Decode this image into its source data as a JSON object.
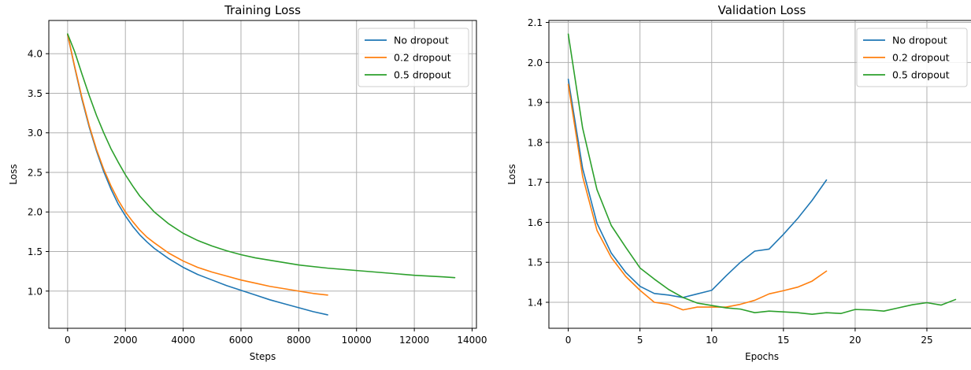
{
  "chart_data": [
    {
      "type": "line",
      "title": "Training Loss",
      "xlabel": "Steps",
      "ylabel": "Loss",
      "xlim": [
        -650,
        14150
      ],
      "ylim": [
        0.53,
        4.42
      ],
      "xticks": [
        0,
        2000,
        4000,
        6000,
        8000,
        10000,
        12000,
        14000
      ],
      "xtick_labels": [
        "0",
        "2000",
        "4000",
        "6000",
        "8000",
        "10000",
        "12000",
        "14000"
      ],
      "yticks": [
        1.0,
        1.5,
        2.0,
        2.5,
        3.0,
        3.5,
        4.0
      ],
      "ytick_labels": [
        "1.0",
        "1.5",
        "2.0",
        "2.5",
        "3.0",
        "3.5",
        "4.0"
      ],
      "grid": true,
      "legend_position": "top-right",
      "series": [
        {
          "name": "No dropout",
          "color": "#1f77b4",
          "points": [
            [
              0,
              4.24
            ],
            [
              250,
              3.82
            ],
            [
              500,
              3.42
            ],
            [
              750,
              3.07
            ],
            [
              1000,
              2.77
            ],
            [
              1250,
              2.51
            ],
            [
              1500,
              2.29
            ],
            [
              1750,
              2.1
            ],
            [
              2000,
              1.95
            ],
            [
              2250,
              1.82
            ],
            [
              2500,
              1.71
            ],
            [
              2750,
              1.62
            ],
            [
              3000,
              1.54
            ],
            [
              3500,
              1.41
            ],
            [
              4000,
              1.3
            ],
            [
              4500,
              1.21
            ],
            [
              5000,
              1.14
            ],
            [
              5500,
              1.07
            ],
            [
              6000,
              1.01
            ],
            [
              6500,
              0.95
            ],
            [
              7000,
              0.89
            ],
            [
              7500,
              0.84
            ],
            [
              8000,
              0.79
            ],
            [
              8500,
              0.74
            ],
            [
              9000,
              0.7
            ]
          ]
        },
        {
          "name": "0.2 dropout",
          "color": "#ff7f0e",
          "points": [
            [
              0,
              4.24
            ],
            [
              250,
              3.83
            ],
            [
              500,
              3.44
            ],
            [
              750,
              3.09
            ],
            [
              1000,
              2.79
            ],
            [
              1250,
              2.54
            ],
            [
              1500,
              2.33
            ],
            [
              1750,
              2.15
            ],
            [
              2000,
              2.0
            ],
            [
              2250,
              1.88
            ],
            [
              2500,
              1.77
            ],
            [
              2750,
              1.68
            ],
            [
              3000,
              1.61
            ],
            [
              3500,
              1.48
            ],
            [
              4000,
              1.38
            ],
            [
              4500,
              1.3
            ],
            [
              5000,
              1.24
            ],
            [
              5500,
              1.19
            ],
            [
              6000,
              1.14
            ],
            [
              6500,
              1.1
            ],
            [
              7000,
              1.06
            ],
            [
              7500,
              1.03
            ],
            [
              8000,
              1.0
            ],
            [
              8500,
              0.97
            ],
            [
              9000,
              0.95
            ]
          ]
        },
        {
          "name": "0.5 dropout",
          "color": "#2ca02c",
          "points": [
            [
              0,
              4.25
            ],
            [
              250,
              4.02
            ],
            [
              500,
              3.74
            ],
            [
              750,
              3.47
            ],
            [
              1000,
              3.22
            ],
            [
              1250,
              3.0
            ],
            [
              1500,
              2.8
            ],
            [
              1750,
              2.63
            ],
            [
              2000,
              2.47
            ],
            [
              2250,
              2.33
            ],
            [
              2500,
              2.2
            ],
            [
              2750,
              2.1
            ],
            [
              3000,
              2.0
            ],
            [
              3500,
              1.85
            ],
            [
              4000,
              1.73
            ],
            [
              4500,
              1.64
            ],
            [
              5000,
              1.57
            ],
            [
              5500,
              1.51
            ],
            [
              6000,
              1.46
            ],
            [
              6500,
              1.42
            ],
            [
              7000,
              1.39
            ],
            [
              7500,
              1.36
            ],
            [
              8000,
              1.33
            ],
            [
              9000,
              1.29
            ],
            [
              10000,
              1.26
            ],
            [
              11000,
              1.23
            ],
            [
              12000,
              1.2
            ],
            [
              13000,
              1.18
            ],
            [
              13400,
              1.17
            ]
          ]
        }
      ]
    },
    {
      "type": "line",
      "title": "Validation Loss",
      "xlabel": "Epochs",
      "ylabel": "Loss",
      "xlim": [
        -1.35,
        28.35
      ],
      "ylim": [
        1.335,
        2.105
      ],
      "xticks": [
        0,
        5,
        10,
        15,
        20,
        25
      ],
      "xtick_labels": [
        "0",
        "5",
        "10",
        "15",
        "20",
        "25"
      ],
      "yticks": [
        1.4,
        1.5,
        1.6,
        1.7,
        1.8,
        1.9,
        2.0,
        2.1
      ],
      "ytick_labels": [
        "1.4",
        "1.5",
        "1.6",
        "1.7",
        "1.8",
        "1.9",
        "2.0",
        "2.1"
      ],
      "grid": true,
      "legend_position": "top-right",
      "series": [
        {
          "name": "No dropout",
          "color": "#1f77b4",
          "points": [
            [
              0,
              1.958
            ],
            [
              1,
              1.735
            ],
            [
              2,
              1.598
            ],
            [
              3,
              1.523
            ],
            [
              4,
              1.475
            ],
            [
              5,
              1.44
            ],
            [
              6,
              1.422
            ],
            [
              7,
              1.418
            ],
            [
              8,
              1.412
            ],
            [
              9,
              1.421
            ],
            [
              10,
              1.43
            ],
            [
              11,
              1.466
            ],
            [
              12,
              1.5
            ],
            [
              13,
              1.528
            ],
            [
              14,
              1.533
            ],
            [
              15,
              1.57
            ],
            [
              16,
              1.61
            ],
            [
              17,
              1.655
            ],
            [
              18,
              1.706
            ]
          ]
        },
        {
          "name": "0.2 dropout",
          "color": "#ff7f0e",
          "points": [
            [
              0,
              1.945
            ],
            [
              1,
              1.715
            ],
            [
              2,
              1.58
            ],
            [
              3,
              1.512
            ],
            [
              4,
              1.465
            ],
            [
              5,
              1.43
            ],
            [
              6,
              1.4
            ],
            [
              7,
              1.395
            ],
            [
              8,
              1.381
            ],
            [
              9,
              1.388
            ],
            [
              10,
              1.388
            ],
            [
              11,
              1.388
            ],
            [
              12,
              1.395
            ],
            [
              13,
              1.405
            ],
            [
              14,
              1.421
            ],
            [
              15,
              1.429
            ],
            [
              16,
              1.438
            ],
            [
              17,
              1.453
            ],
            [
              18,
              1.478
            ]
          ]
        },
        {
          "name": "0.5 dropout",
          "color": "#2ca02c",
          "points": [
            [
              0,
              2.071
            ],
            [
              1,
              1.836
            ],
            [
              2,
              1.682
            ],
            [
              3,
              1.592
            ],
            [
              4,
              1.538
            ],
            [
              5,
              1.486
            ],
            [
              6,
              1.458
            ],
            [
              7,
              1.432
            ],
            [
              8,
              1.412
            ],
            [
              9,
              1.398
            ],
            [
              10,
              1.392
            ],
            [
              11,
              1.386
            ],
            [
              12,
              1.383
            ],
            [
              13,
              1.374
            ],
            [
              14,
              1.378
            ],
            [
              15,
              1.376
            ],
            [
              16,
              1.374
            ],
            [
              17,
              1.37
            ],
            [
              18,
              1.374
            ],
            [
              19,
              1.372
            ],
            [
              20,
              1.382
            ],
            [
              21,
              1.381
            ],
            [
              22,
              1.378
            ],
            [
              23,
              1.386
            ],
            [
              24,
              1.394
            ],
            [
              25,
              1.399
            ],
            [
              26,
              1.393
            ],
            [
              27,
              1.407
            ]
          ]
        }
      ]
    }
  ]
}
